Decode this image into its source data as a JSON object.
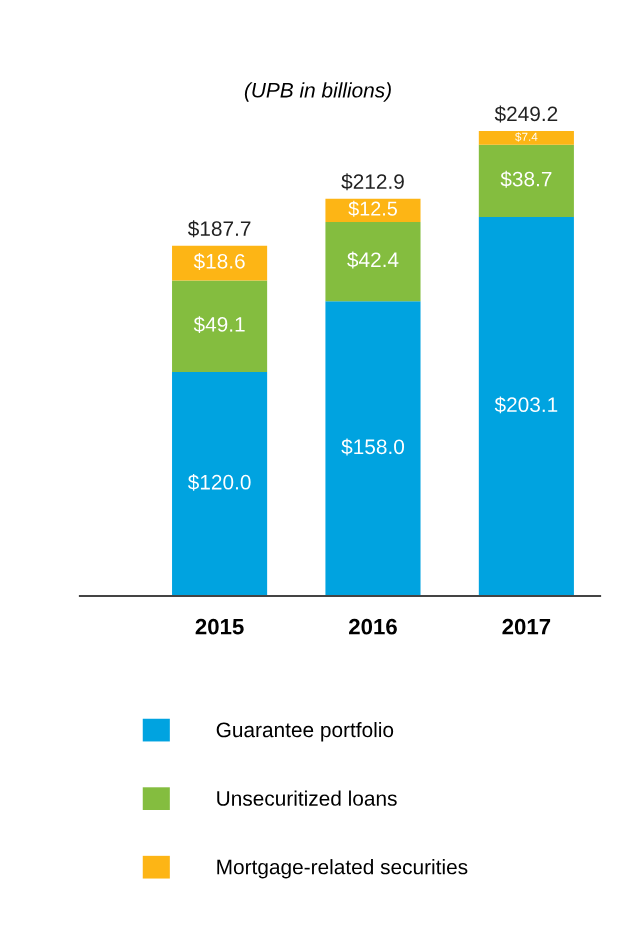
{
  "chart_data": {
    "type": "bar",
    "stacked": true,
    "title": "(UPB in billions)",
    "categories": [
      "2015",
      "2016",
      "2017"
    ],
    "series": [
      {
        "name": "Guarantee portfolio",
        "color": "#00a3e0",
        "values": [
          120.0,
          158.0,
          203.1
        ],
        "value_labels": [
          "$120.0",
          "$158.0",
          "$203.1"
        ]
      },
      {
        "name": "Unsecuritized loans",
        "color": "#84bd3f",
        "values": [
          49.1,
          42.4,
          38.7
        ],
        "value_labels": [
          "$49.1",
          "$42.4",
          "$38.7"
        ]
      },
      {
        "name": "Mortgage-related securities",
        "color": "#fdb515",
        "values": [
          18.6,
          12.5,
          7.4
        ],
        "value_labels": [
          "$18.6",
          "$12.5",
          "$7.4"
        ]
      }
    ],
    "totals": [
      "$187.7",
      "$212.9",
      "$249.2"
    ],
    "legend": "bottom",
    "grid": false
  }
}
